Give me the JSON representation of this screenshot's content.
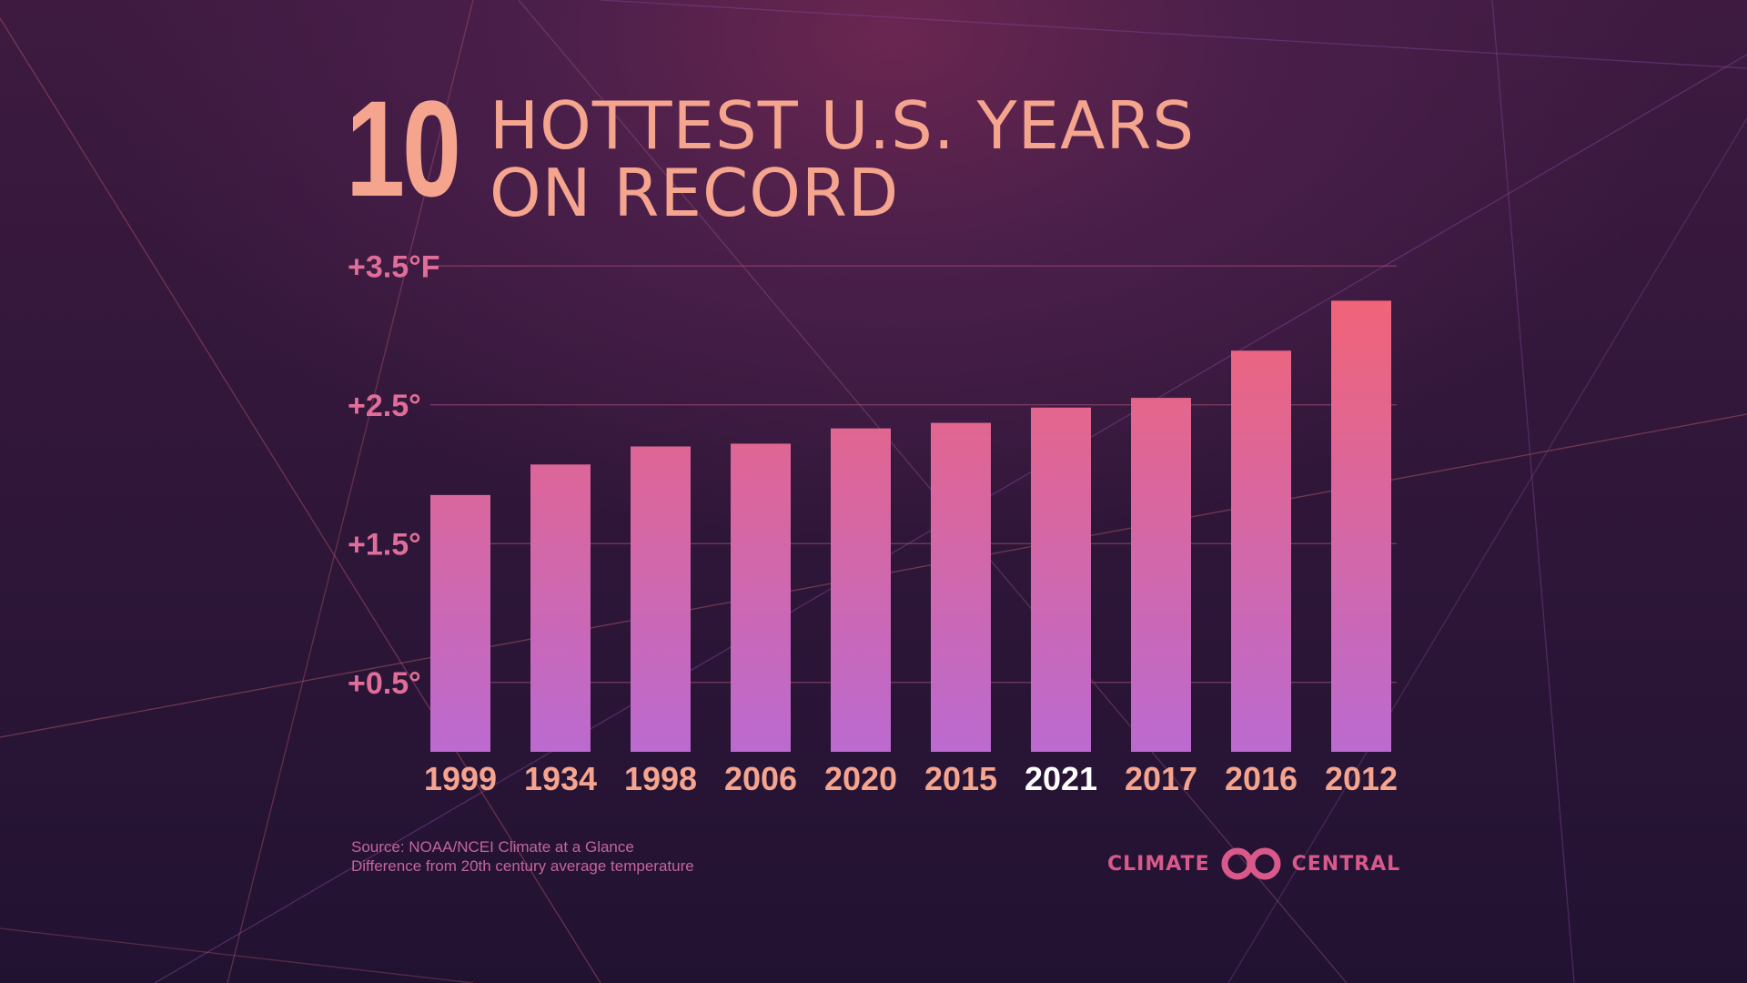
{
  "title": {
    "number": "10",
    "line1": "HOTTEST U.S. YEARS",
    "line2": "ON RECORD"
  },
  "chart_data": {
    "type": "bar",
    "categories": [
      "1999",
      "1934",
      "1998",
      "2006",
      "2020",
      "2015",
      "2021",
      "2017",
      "2016",
      "2012"
    ],
    "values": [
      1.85,
      2.07,
      2.2,
      2.22,
      2.33,
      2.37,
      2.48,
      2.55,
      2.89,
      3.25
    ],
    "highlight_category": "2021",
    "yticks": [
      {
        "value": 0.5,
        "label": "+0.5°"
      },
      {
        "value": 1.5,
        "label": "+1.5°"
      },
      {
        "value": 2.5,
        "label": "+2.5°"
      },
      {
        "value": 3.5,
        "label": "+3.5°F"
      }
    ],
    "ylim": [
      0,
      3.5
    ],
    "grid": true,
    "colors": {
      "bar_top": "#f06478",
      "bar_bottom": "#bb6ad0",
      "tick_label": "#e06e98",
      "category_label": "#f5a48e",
      "highlight_label": "#ffffff"
    }
  },
  "source": {
    "line1": "Source: NOAA/NCEI Climate at a Glance",
    "line2": "Difference from 20th century average temperature"
  },
  "brand": {
    "word1": "CLIMATE",
    "word2": "CENTRAL",
    "logo_icon": "interlocking-rings-icon"
  }
}
